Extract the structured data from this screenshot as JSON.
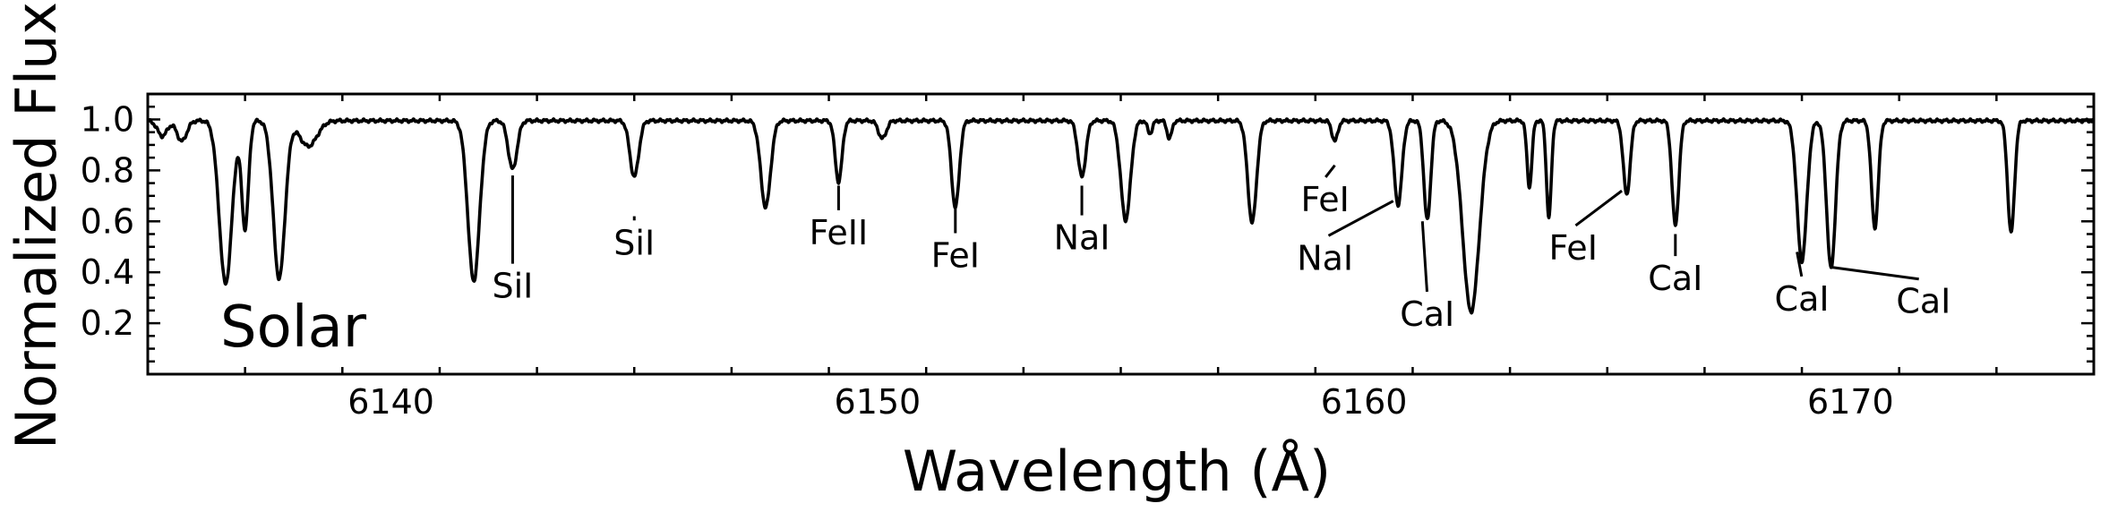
{
  "chart_data": {
    "type": "line",
    "panel_label": "Solar",
    "xlabel": "Wavelength (Å)",
    "ylabel": "Normalized Flux",
    "xlim": [
      6135,
      6175
    ],
    "ylim": [
      0.0,
      1.1
    ],
    "x_ticks": [
      6140,
      6150,
      6160,
      6170
    ],
    "y_ticks": [
      0.2,
      0.4,
      0.6,
      0.8,
      1.0
    ],
    "grid": false,
    "continuum": 0.995,
    "absorption_lines": [
      {
        "wavelength": 6135.3,
        "depth": 0.06,
        "width": 0.1
      },
      {
        "wavelength": 6135.7,
        "depth": 0.08,
        "width": 0.1
      },
      {
        "wavelength": 6136.6,
        "depth": 0.64,
        "width": 0.13
      },
      {
        "wavelength": 6137.0,
        "depth": 0.42,
        "width": 0.07
      },
      {
        "wavelength": 6137.7,
        "depth": 0.62,
        "width": 0.12
      },
      {
        "wavelength": 6138.3,
        "depth": 0.1,
        "width": 0.18
      },
      {
        "wavelength": 6141.7,
        "depth": 0.63,
        "width": 0.12
      },
      {
        "wavelength": 6142.5,
        "depth": 0.19,
        "width": 0.09
      },
      {
        "wavelength": 6145.0,
        "depth": 0.22,
        "width": 0.09
      },
      {
        "wavelength": 6147.7,
        "depth": 0.34,
        "width": 0.1
      },
      {
        "wavelength": 6149.2,
        "depth": 0.24,
        "width": 0.07
      },
      {
        "wavelength": 6150.1,
        "depth": 0.07,
        "width": 0.08
      },
      {
        "wavelength": 6151.6,
        "depth": 0.34,
        "width": 0.08
      },
      {
        "wavelength": 6154.2,
        "depth": 0.22,
        "width": 0.08
      },
      {
        "wavelength": 6155.1,
        "depth": 0.39,
        "width": 0.1
      },
      {
        "wavelength": 6155.6,
        "depth": 0.05,
        "width": 0.05
      },
      {
        "wavelength": 6156.0,
        "depth": 0.07,
        "width": 0.05
      },
      {
        "wavelength": 6157.7,
        "depth": 0.4,
        "width": 0.09
      },
      {
        "wavelength": 6159.4,
        "depth": 0.08,
        "width": 0.06
      },
      {
        "wavelength": 6160.7,
        "depth": 0.33,
        "width": 0.08
      },
      {
        "wavelength": 6161.3,
        "depth": 0.39,
        "width": 0.07
      },
      {
        "wavelength": 6162.2,
        "depth": 0.75,
        "width": 0.17
      },
      {
        "wavelength": 6163.4,
        "depth": 0.26,
        "width": 0.05
      },
      {
        "wavelength": 6163.8,
        "depth": 0.38,
        "width": 0.05
      },
      {
        "wavelength": 6165.4,
        "depth": 0.29,
        "width": 0.07
      },
      {
        "wavelength": 6166.4,
        "depth": 0.41,
        "width": 0.07
      },
      {
        "wavelength": 6169.0,
        "depth": 0.55,
        "width": 0.1
      },
      {
        "wavelength": 6169.6,
        "depth": 0.58,
        "width": 0.09
      },
      {
        "wavelength": 6170.5,
        "depth": 0.42,
        "width": 0.07
      },
      {
        "wavelength": 6173.3,
        "depth": 0.44,
        "width": 0.07
      }
    ],
    "annotations": [
      {
        "text": "SiI",
        "line_x": 6142.5,
        "line_y": 0.78,
        "text_x": 6142.5,
        "text_y": 0.3
      },
      {
        "text": "SiI",
        "line_x": 6145.0,
        "line_y": 0.62,
        "text_x": 6145.0,
        "text_y": 0.47
      },
      {
        "text": "FeII",
        "line_x": 6149.2,
        "line_y": 0.74,
        "text_x": 6149.2,
        "text_y": 0.51
      },
      {
        "text": "FeI",
        "line_x": 6151.6,
        "line_y": 0.65,
        "text_x": 6151.6,
        "text_y": 0.42
      },
      {
        "text": "NaI",
        "line_x": 6154.2,
        "line_y": 0.74,
        "text_x": 6154.2,
        "text_y": 0.49
      },
      {
        "text": "FeI",
        "line_x": 6159.4,
        "line_y": 0.82,
        "text_x": 6159.2,
        "text_y": 0.64
      },
      {
        "text": "NaI",
        "line_x": 6160.6,
        "line_y": 0.68,
        "text_x": 6159.2,
        "text_y": 0.41
      },
      {
        "text": "CaI",
        "line_x": 6161.2,
        "line_y": 0.6,
        "text_x": 6161.3,
        "text_y": 0.19
      },
      {
        "text": "FeI",
        "line_x": 6165.3,
        "line_y": 0.72,
        "text_x": 6164.3,
        "text_y": 0.45
      },
      {
        "text": "CaI",
        "line_x": 6166.4,
        "line_y": 0.55,
        "text_x": 6166.4,
        "text_y": 0.33
      },
      {
        "text": "CaI",
        "line_x": 6168.9,
        "line_y": 0.48,
        "text_x": 6169.0,
        "text_y": 0.25
      },
      {
        "text": "CaI",
        "line_x": 6169.6,
        "line_y": 0.42,
        "text_x": 6171.5,
        "text_y": 0.24
      }
    ]
  }
}
